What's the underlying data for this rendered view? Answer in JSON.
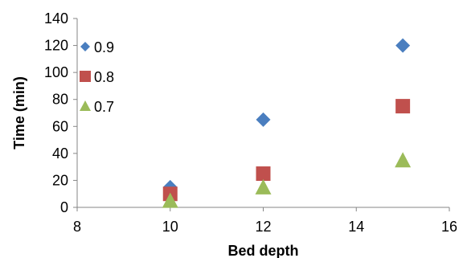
{
  "chart_data": {
    "type": "scatter",
    "xlabel": "Bed depth",
    "ylabel": "Time (min)",
    "xlim": [
      8,
      16
    ],
    "ylim": [
      0,
      140
    ],
    "x_ticks": [
      "8",
      "10",
      "12",
      "14",
      "16"
    ],
    "y_ticks": [
      "0",
      "20",
      "40",
      "60",
      "80",
      "100",
      "120",
      "140"
    ],
    "grid": false,
    "legend_position": "top-left",
    "series": [
      {
        "name": "0.9",
        "marker": "diamond",
        "color": "#4a7ebf",
        "x": [
          10,
          12,
          15
        ],
        "y": [
          15,
          65,
          120
        ]
      },
      {
        "name": "0.8",
        "marker": "square",
        "color": "#c0504d",
        "x": [
          10,
          12,
          15
        ],
        "y": [
          10,
          25,
          75
        ]
      },
      {
        "name": "0.7",
        "marker": "triangle",
        "color": "#9bbb59",
        "x": [
          10,
          12,
          15
        ],
        "y": [
          5,
          15,
          35
        ]
      }
    ]
  }
}
